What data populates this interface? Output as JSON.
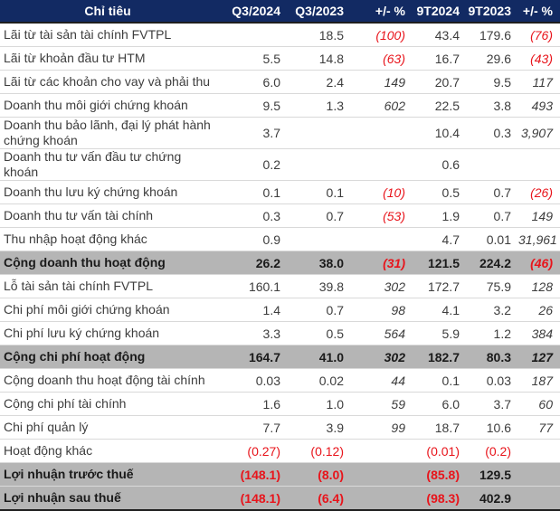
{
  "chart_data": {
    "type": "table",
    "columns": [
      "Chỉ tiêu",
      "Q3/2024",
      "Q3/2023",
      "+/- %",
      "9T2024",
      "9T2023",
      "+/- %"
    ],
    "pct_column_indices": [
      2,
      5
    ],
    "rows": [
      {
        "label": "Lãi từ tài sản tài chính FVTPL",
        "values": [
          "",
          "18.5",
          "(100)",
          "43.4",
          "179.6",
          "(76)"
        ],
        "row_style": "normal"
      },
      {
        "label": "Lãi từ khoản đầu tư HTM",
        "values": [
          "5.5",
          "14.8",
          "(63)",
          "16.7",
          "29.6",
          "(43)"
        ],
        "row_style": "normal"
      },
      {
        "label": "Lãi từ các khoản cho vay và phải thu",
        "values": [
          "6.0",
          "2.4",
          "149",
          "20.7",
          "9.5",
          "117"
        ],
        "row_style": "normal"
      },
      {
        "label": "Doanh thu môi giới chứng khoán",
        "values": [
          "9.5",
          "1.3",
          "602",
          "22.5",
          "3.8",
          "493"
        ],
        "row_style": "normal"
      },
      {
        "label": "Doanh thu bảo lãnh, đại lý phát hành chứng khoán",
        "values": [
          "3.7",
          "",
          "",
          "10.4",
          "0.3",
          "3,907"
        ],
        "row_style": "normal"
      },
      {
        "label": "Doanh thu tư vấn đầu tư chứng khoán",
        "values": [
          "0.2",
          "",
          "",
          "0.6",
          "",
          ""
        ],
        "row_style": "normal"
      },
      {
        "label": "Doanh thu lưu ký chứng khoán",
        "values": [
          "0.1",
          "0.1",
          "(10)",
          "0.5",
          "0.7",
          "(26)"
        ],
        "row_style": "normal"
      },
      {
        "label": "Doanh thu tư vấn tài chính",
        "values": [
          "0.3",
          "0.7",
          "(53)",
          "1.9",
          "0.7",
          "149"
        ],
        "row_style": "normal"
      },
      {
        "label": "Thu nhập hoạt động khác",
        "values": [
          "0.9",
          "",
          "",
          "4.7",
          "0.01",
          "31,961"
        ],
        "row_style": "normal"
      },
      {
        "label": "Cộng doanh thu hoạt động",
        "values": [
          "26.2",
          "38.0",
          "(31)",
          "121.5",
          "224.2",
          "(46)"
        ],
        "row_style": "subtotal"
      },
      {
        "label": "Lỗ tài sản tài chính FVTPL",
        "values": [
          "160.1",
          "39.8",
          "302",
          "172.7",
          "75.9",
          "128"
        ],
        "row_style": "normal"
      },
      {
        "label": "Chi phí môi giới chứng khoán",
        "values": [
          "1.4",
          "0.7",
          "98",
          "4.1",
          "3.2",
          "26"
        ],
        "row_style": "normal"
      },
      {
        "label": "Chi phí lưu ký chứng khoán",
        "values": [
          "3.3",
          "0.5",
          "564",
          "5.9",
          "1.2",
          "384"
        ],
        "row_style": "normal"
      },
      {
        "label": "Cộng chi phí hoạt động",
        "values": [
          "164.7",
          "41.0",
          "302",
          "182.7",
          "80.3",
          "127"
        ],
        "row_style": "subtotal"
      },
      {
        "label": "Cộng doanh thu hoạt động tài chính",
        "values": [
          "0.03",
          "0.02",
          "44",
          "0.1",
          "0.03",
          "187"
        ],
        "row_style": "normal"
      },
      {
        "label": "Cộng chi phí tài chính",
        "values": [
          "1.6",
          "1.0",
          "59",
          "6.0",
          "3.7",
          "60"
        ],
        "row_style": "normal"
      },
      {
        "label": "Chi phí quản lý",
        "values": [
          "7.7",
          "3.9",
          "99",
          "18.7",
          "10.6",
          "77"
        ],
        "row_style": "normal"
      },
      {
        "label": "Hoạt động khác",
        "values": [
          "(0.27)",
          "(0.12)",
          "",
          "(0.01)",
          "(0.2)",
          ""
        ],
        "row_style": "normal"
      },
      {
        "label": "Lợi nhuận trước thuế",
        "values": [
          "(148.1)",
          "(8.0)",
          "",
          "(85.8)",
          "129.5",
          ""
        ],
        "row_style": "subtotal"
      },
      {
        "label": "Lợi nhuận sau thuế",
        "values": [
          "(148.1)",
          "(6.4)",
          "",
          "(98.3)",
          "402.9",
          ""
        ],
        "row_style": "subtotal"
      }
    ]
  },
  "colors": {
    "header_bg": "#122a63",
    "header_text": "#ffffff",
    "subtotal_bg": "#b5b5b5",
    "negative_red": "#e8141b",
    "row_text": "#3d3d3d",
    "subtotal_text": "#1a1a1a",
    "divider": "#d9d9d9",
    "strong_border": "#1f1f1f"
  }
}
